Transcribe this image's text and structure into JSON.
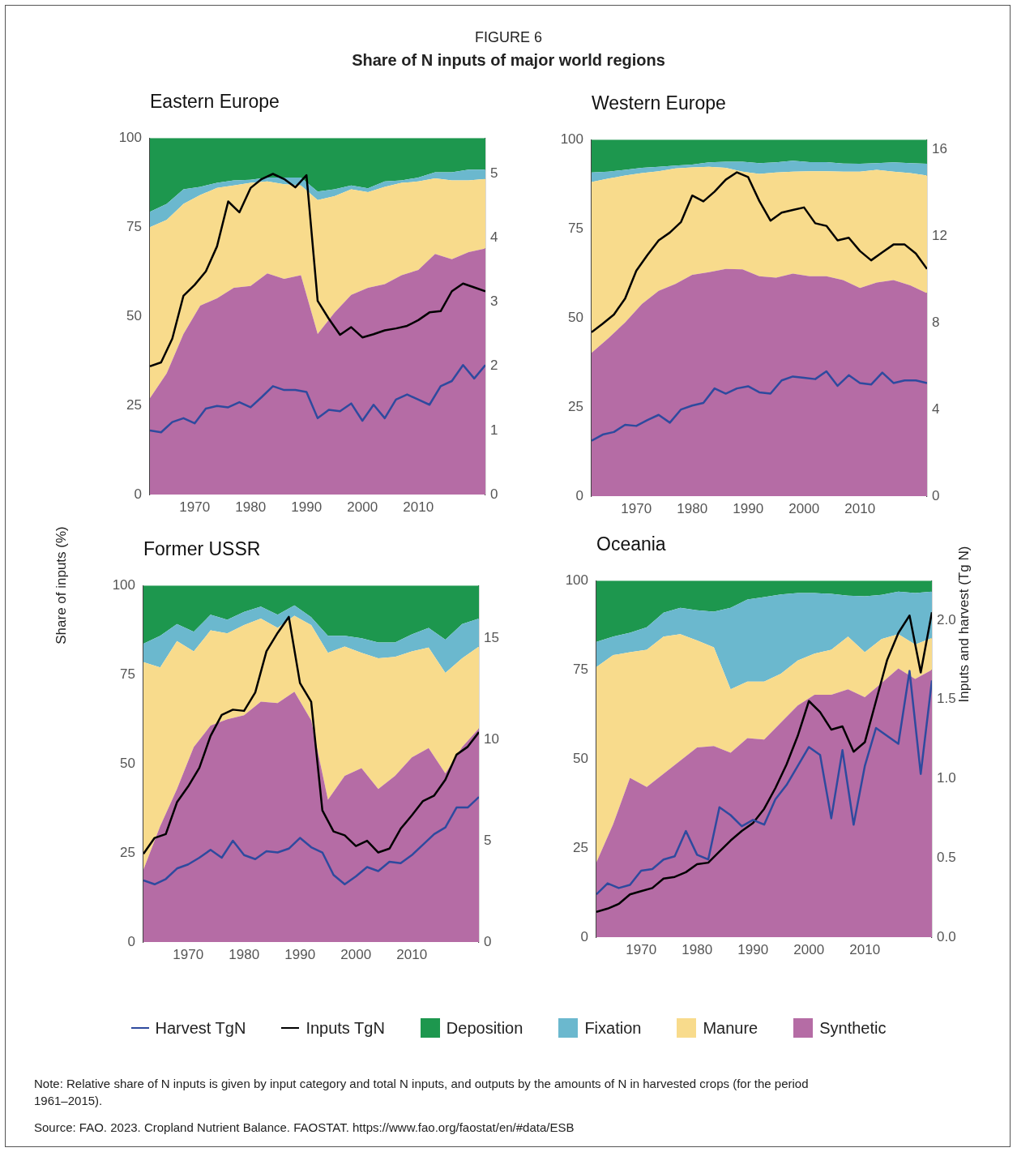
{
  "chart_data": [
    {
      "type": "other",
      "subtitle": "FIGURE 6",
      "title": "Share of N inputs of major world regions",
      "annotations": [
        "Note: Relative share of N inputs is given by input category and total N inputs, and outputs by the amounts of N in harvested crops (for the period 1961–2015).",
        "Source: FAO. 2023. Cropland Nutrient Balance. FAOSTAT. https://www.fao.org/faostat/en/#data/ESB"
      ]
    },
    {
      "type": "area",
      "title": "Eastern Europe",
      "stacked": true,
      "grid": false,
      "legend": "bottom",
      "xlim": [
        1962,
        2022
      ],
      "xticks": [
        1970,
        1980,
        1990,
        2000,
        2010
      ],
      "ylim": [
        0,
        100
      ],
      "yticks": [
        0,
        25,
        50,
        75,
        100
      ],
      "y2lim": [
        0,
        5.56
      ],
      "y2ticks": [
        0,
        1,
        2,
        3,
        4,
        5
      ],
      "series": [
        {
          "name": "Synthetic",
          "type": "area",
          "color": "#b56ca5",
          "x": [
            1962,
            1965,
            1968,
            1971,
            1974,
            1977,
            1980,
            1983,
            1986,
            1989,
            1992,
            1995,
            1998,
            2001,
            2004,
            2007,
            2010,
            2013,
            2016,
            2019,
            2022
          ],
          "values": [
            27,
            34,
            45,
            53,
            55,
            58,
            58.5,
            62,
            60.5,
            61.5,
            45,
            51,
            56,
            58,
            59,
            61.5,
            63,
            67.5,
            66,
            68,
            69
          ]
        },
        {
          "name": "Manure",
          "type": "area",
          "color": "#f8db8c",
          "x": [
            1962,
            1965,
            1968,
            1971,
            1974,
            1977,
            1980,
            1983,
            1986,
            1989,
            1992,
            1995,
            1998,
            2001,
            2004,
            2007,
            2010,
            2013,
            2016,
            2019,
            2022
          ],
          "values": [
            48,
            43,
            36.5,
            31,
            31,
            28.7,
            28.9,
            25.8,
            26.5,
            25.2,
            37.6,
            32.7,
            29.6,
            26.8,
            27.3,
            25.9,
            24.8,
            21.2,
            22.1,
            20.1,
            19.5
          ]
        },
        {
          "name": "Fixation",
          "type": "area",
          "color": "#6bb8ce",
          "x": [
            1962,
            1965,
            1968,
            1971,
            1974,
            1977,
            1980,
            1983,
            1986,
            1989,
            1992,
            1995,
            1998,
            2001,
            2004,
            2007,
            2010,
            2013,
            2016,
            2019,
            2022
          ],
          "values": [
            4.3,
            4.5,
            4.1,
            2.3,
            1.4,
            1.4,
            0.9,
            1.1,
            1.9,
            2.2,
            2.4,
            1.9,
            1.1,
            1.1,
            1.5,
            0.7,
            1.1,
            1.7,
            2.3,
            3,
            2.6
          ]
        },
        {
          "name": "Deposition",
          "type": "area",
          "color": "#1d974e",
          "x": [
            1962,
            1965,
            1968,
            1971,
            1974,
            1977,
            1980,
            1983,
            1986,
            1989,
            1992,
            1995,
            1998,
            2001,
            2004,
            2007,
            2010,
            2013,
            2016,
            2019,
            2022
          ],
          "values": [
            20.7,
            18.5,
            14.4,
            13.7,
            12.6,
            11.9,
            11.7,
            11.1,
            11.1,
            11.1,
            15,
            14.4,
            13.3,
            14.1,
            12.2,
            11.9,
            11.1,
            9.6,
            9.6,
            8.9,
            8.9
          ]
        },
        {
          "name": "Harvest TgN",
          "type": "line",
          "axis": "y2",
          "color": "#2e4a9e",
          "x": [
            1962,
            1964,
            1966,
            1968,
            1970,
            1972,
            1974,
            1976,
            1978,
            1980,
            1982,
            1984,
            1986,
            1988,
            1990,
            1992,
            1994,
            1996,
            1998,
            2000,
            2002,
            2004,
            2006,
            2008,
            2010,
            2012,
            2014,
            2016,
            2018,
            2020,
            2022
          ],
          "values": [
            1.0,
            0.97,
            1.13,
            1.19,
            1.11,
            1.34,
            1.38,
            1.36,
            1.44,
            1.36,
            1.52,
            1.69,
            1.63,
            1.63,
            1.6,
            1.19,
            1.32,
            1.3,
            1.42,
            1.15,
            1.4,
            1.19,
            1.48,
            1.56,
            1.48,
            1.4,
            1.69,
            1.77,
            2.02,
            1.81,
            2.02
          ]
        },
        {
          "name": "Inputs TgN",
          "type": "line",
          "axis": "y2",
          "color": "#000000",
          "x": [
            1962,
            1964,
            1966,
            1968,
            1970,
            1972,
            1974,
            1976,
            1978,
            1980,
            1982,
            1984,
            1986,
            1988,
            1990,
            1992,
            1994,
            1996,
            1998,
            2000,
            2002,
            2004,
            2006,
            2008,
            2010,
            2012,
            2014,
            2016,
            2018,
            2020,
            2022
          ],
          "values": [
            2.0,
            2.06,
            2.43,
            3.1,
            3.27,
            3.48,
            3.87,
            4.57,
            4.4,
            4.78,
            4.92,
            5.0,
            4.92,
            4.79,
            4.98,
            3.02,
            2.74,
            2.49,
            2.61,
            2.45,
            2.5,
            2.56,
            2.59,
            2.63,
            2.72,
            2.84,
            2.86,
            3.17,
            3.29,
            3.23,
            3.17
          ]
        }
      ]
    },
    {
      "type": "area",
      "title": "Western Europe",
      "stacked": true,
      "grid": false,
      "xlim": [
        1962,
        2022
      ],
      "xticks": [
        1970,
        1980,
        1990,
        2000,
        2010
      ],
      "ylim": [
        0,
        100
      ],
      "yticks": [
        0,
        25,
        50,
        75,
        100
      ],
      "y2lim": [
        0,
        16.45
      ],
      "y2ticks": [
        0,
        4,
        8,
        12,
        16
      ],
      "series": [
        {
          "type": "area",
          "color": "#b56ca5",
          "x": [
            1962,
            1965,
            1968,
            1971,
            1974,
            1977,
            1980,
            1983,
            1986,
            1989,
            1992,
            1995,
            1998,
            2001,
            2004,
            2007,
            2010,
            2013,
            2016,
            2019,
            2022
          ],
          "values": [
            40.2,
            44.3,
            48.7,
            53.9,
            57.6,
            59.5,
            62.1,
            62.8,
            63.7,
            63.6,
            61.7,
            61.3,
            62.4,
            61.7,
            61.7,
            60.6,
            58.4,
            59.9,
            60.6,
            59.1,
            56.9
          ]
        },
        {
          "type": "area",
          "color": "#f8db8c",
          "x": [
            1962,
            1965,
            1968,
            1971,
            1974,
            1977,
            1980,
            1983,
            1986,
            1989,
            1992,
            1995,
            1998,
            2001,
            2004,
            2007,
            2010,
            2013,
            2016,
            2019,
            2022
          ],
          "values": [
            47.9,
            44.8,
            41.2,
            36.7,
            33.5,
            32.4,
            30.1,
            29.6,
            28.4,
            27.4,
            28.7,
            29.5,
            28.6,
            29.4,
            29.4,
            30.4,
            32.6,
            31.6,
            30.4,
            31.5,
            33
          ]
        },
        {
          "type": "area",
          "color": "#6bb8ce",
          "x": [
            1962,
            1965,
            1968,
            1971,
            1974,
            1977,
            1980,
            1983,
            1986,
            1989,
            1992,
            1995,
            1998,
            2001,
            2004,
            2007,
            2010,
            2013,
            2016,
            2019,
            2022
          ],
          "values": [
            2.7,
            1.9,
            1.6,
            1.5,
            1.3,
            0.8,
            0.8,
            1.2,
            1.7,
            2.8,
            3,
            2.8,
            3.1,
            2.6,
            2.6,
            2.3,
            2.2,
            1.9,
            2.6,
            2.8,
            3.3
          ]
        },
        {
          "type": "area",
          "color": "#1d974e",
          "x": [
            1962,
            1965,
            1968,
            1971,
            1974,
            1977,
            1980,
            1983,
            1986,
            1989,
            1992,
            1995,
            1998,
            2001,
            2004,
            2007,
            2010,
            2013,
            2016,
            2019,
            2022
          ],
          "values": [
            9.2,
            9,
            8.5,
            7.9,
            7.6,
            7.3,
            7,
            6.4,
            6.2,
            6.2,
            6.6,
            6.4,
            5.9,
            6.3,
            6.3,
            6.7,
            6.8,
            6.6,
            6.4,
            6.6,
            6.8
          ]
        },
        {
          "type": "line",
          "axis": "y2",
          "color": "#2e4a9e",
          "x": [
            1962,
            1964,
            1966,
            1968,
            1970,
            1972,
            1974,
            1976,
            1978,
            1980,
            1982,
            1984,
            1986,
            1988,
            1990,
            1992,
            1994,
            1996,
            1998,
            2000,
            2002,
            2004,
            2006,
            2008,
            2010,
            2012,
            2014,
            2016,
            2018,
            2020,
            2022
          ],
          "values": [
            2.56,
            2.84,
            2.96,
            3.29,
            3.24,
            3.51,
            3.75,
            3.39,
            4.0,
            4.18,
            4.3,
            4.97,
            4.73,
            4.97,
            5.07,
            4.79,
            4.73,
            5.34,
            5.52,
            5.46,
            5.4,
            5.76,
            5.09,
            5.58,
            5.22,
            5.15,
            5.7,
            5.22,
            5.34,
            5.34,
            5.22
          ]
        },
        {
          "type": "line",
          "axis": "y2",
          "color": "#000000",
          "x": [
            1962,
            1964,
            1966,
            1968,
            1970,
            1972,
            1974,
            1976,
            1978,
            1980,
            1982,
            1984,
            1986,
            1988,
            1990,
            1992,
            1994,
            1996,
            1998,
            2000,
            2002,
            2004,
            2006,
            2008,
            2010,
            2012,
            2014,
            2016,
            2018,
            2020,
            2022
          ],
          "values": [
            7.56,
            7.96,
            8.38,
            9.12,
            10.4,
            11.13,
            11.8,
            12.16,
            12.65,
            13.87,
            13.6,
            14.05,
            14.6,
            14.94,
            14.72,
            13.62,
            12.71,
            13.08,
            13.2,
            13.32,
            12.59,
            12.47,
            11.8,
            11.92,
            11.31,
            10.88,
            11.25,
            11.61,
            11.61,
            11.19,
            10.48
          ]
        }
      ]
    },
    {
      "type": "area",
      "title": "Former USSR",
      "ylabel": "Share of inputs (%)",
      "stacked": true,
      "grid": false,
      "xlim": [
        1962,
        2022
      ],
      "xticks": [
        1970,
        1980,
        1990,
        2000,
        2010
      ],
      "ylim": [
        0,
        100
      ],
      "yticks": [
        0,
        25,
        50,
        75,
        100
      ],
      "y2lim": [
        0,
        17.6
      ],
      "y2ticks": [
        0,
        5,
        10,
        15
      ],
      "series": [
        {
          "type": "area",
          "color": "#b56ca5",
          "x": [
            1962,
            1965,
            1968,
            1971,
            1974,
            1977,
            1980,
            1983,
            1986,
            1989,
            1992,
            1995,
            1998,
            2001,
            2004,
            2007,
            2010,
            2013,
            2016,
            2019,
            2022
          ],
          "values": [
            20.3,
            32.5,
            42.9,
            54.7,
            60.7,
            62.5,
            63.6,
            67.4,
            67,
            70.2,
            62.2,
            39.9,
            46.6,
            48.8,
            42.9,
            46.6,
            51.8,
            54.4,
            47.3,
            54.7,
            59.9
          ]
        },
        {
          "type": "area",
          "color": "#f8db8c",
          "x": [
            1962,
            1965,
            1968,
            1971,
            1974,
            1977,
            1980,
            1983,
            1986,
            1989,
            1992,
            1995,
            1998,
            2001,
            2004,
            2007,
            2010,
            2013,
            2016,
            2019,
            2022
          ],
          "values": [
            58.2,
            44.5,
            41.5,
            26.8,
            26.7,
            24.1,
            25.3,
            23.3,
            21.1,
            21.3,
            26.7,
            41.2,
            36.3,
            32.3,
            36.7,
            33.4,
            29.7,
            28.2,
            28.2,
            24.9,
            23
          ]
        },
        {
          "type": "area",
          "color": "#6bb8ce",
          "x": [
            1962,
            1965,
            1968,
            1971,
            1974,
            1977,
            1980,
            1983,
            1986,
            1989,
            1992,
            1995,
            1998,
            2001,
            2004,
            2007,
            2010,
            2013,
            2016,
            2019,
            2022
          ],
          "values": [
            5.2,
            8.9,
            4.8,
            5.5,
            4.4,
            3.8,
            3.7,
            3.4,
            3.7,
            2.9,
            2.2,
            4.8,
            3,
            4.1,
            4.4,
            4,
            4.8,
            5.5,
            9.3,
            9.6,
            7.8
          ]
        },
        {
          "type": "area",
          "color": "#1d974e",
          "x": [
            1962,
            1965,
            1968,
            1971,
            1974,
            1977,
            1980,
            1983,
            1986,
            1989,
            1992,
            1995,
            1998,
            2001,
            2004,
            2007,
            2010,
            2013,
            2016,
            2019,
            2022
          ],
          "values": [
            16.3,
            14.1,
            10.8,
            13,
            8.2,
            9.6,
            7.4,
            5.9,
            8.2,
            5.6,
            8.9,
            14.1,
            14.1,
            14.8,
            16,
            16,
            13.7,
            11.9,
            15.2,
            10.8,
            9.3
          ]
        },
        {
          "type": "line",
          "axis": "y2",
          "color": "#2e4a9e",
          "x": [
            1962,
            1964,
            1966,
            1968,
            1970,
            1972,
            1974,
            1976,
            1978,
            1980,
            1982,
            1984,
            1986,
            1988,
            1990,
            1992,
            1994,
            1996,
            1998,
            2000,
            2002,
            2004,
            2006,
            2008,
            2010,
            2012,
            2014,
            2016,
            2018,
            2020,
            2022
          ],
          "values": [
            3.04,
            2.85,
            3.11,
            3.63,
            3.83,
            4.16,
            4.55,
            4.16,
            5.0,
            4.29,
            4.09,
            4.48,
            4.42,
            4.61,
            5.14,
            4.68,
            4.42,
            3.31,
            2.85,
            3.24,
            3.7,
            3.5,
            3.96,
            3.89,
            4.29,
            4.81,
            5.33,
            5.66,
            6.64,
            6.64,
            7.16
          ]
        },
        {
          "type": "line",
          "axis": "y2",
          "color": "#000000",
          "x": [
            1962,
            1964,
            1966,
            1968,
            1970,
            1972,
            1974,
            1976,
            1978,
            1980,
            1982,
            1984,
            1986,
            1988,
            1990,
            1992,
            1994,
            1996,
            1998,
            2000,
            2002,
            2004,
            2006,
            2008,
            2010,
            2012,
            2014,
            2016,
            2018,
            2020,
            2022
          ],
          "values": [
            4.35,
            5.14,
            5.33,
            6.9,
            7.68,
            8.6,
            10.17,
            11.21,
            11.47,
            11.41,
            12.32,
            14.35,
            15.26,
            16.05,
            12.78,
            11.86,
            6.5,
            5.46,
            5.27,
            4.74,
            5.0,
            4.42,
            4.61,
            5.59,
            6.25,
            6.96,
            7.23,
            8.01,
            9.25,
            9.64,
            10.36
          ]
        }
      ]
    },
    {
      "type": "area",
      "title": "Oceania",
      "y2label": "Inputs and harvest (Tg N)",
      "stacked": true,
      "grid": false,
      "xlim": [
        1962,
        2022
      ],
      "xticks": [
        1970,
        1980,
        1990,
        2000,
        2010
      ],
      "ylim": [
        0,
        100
      ],
      "yticks": [
        0,
        25,
        50,
        75,
        100
      ],
      "y2lim": [
        0,
        2.25
      ],
      "y2ticks": [
        {
          "value": 0,
          "label": "0.0"
        },
        {
          "value": 0.5,
          "label": "0.5"
        },
        {
          "value": 1,
          "label": "1.0"
        },
        {
          "value": 1.5,
          "label": "1.5"
        },
        {
          "value": 2,
          "label": "2.0"
        }
      ],
      "series": [
        {
          "type": "area",
          "color": "#b56ca5",
          "x": [
            1962,
            1965,
            1968,
            1971,
            1974,
            1977,
            1980,
            1983,
            1986,
            1989,
            1992,
            1995,
            1998,
            2001,
            2004,
            2007,
            2010,
            2013,
            2016,
            2019,
            2022
          ],
          "values": [
            21,
            31.7,
            44.7,
            42.1,
            45.8,
            49.5,
            53.2,
            53.6,
            51.7,
            55.8,
            55.4,
            60.2,
            65,
            68,
            68,
            69.5,
            67.3,
            71.3,
            75.4,
            72.4,
            75
          ]
        },
        {
          "type": "area",
          "color": "#f8db8c",
          "x": [
            1962,
            1965,
            1968,
            1971,
            1974,
            1977,
            1980,
            1983,
            1986,
            1989,
            1992,
            1995,
            1998,
            2001,
            2004,
            2007,
            2010,
            2013,
            2016,
            2019,
            2022
          ],
          "values": [
            54.8,
            47.4,
            35.2,
            38.5,
            38.5,
            35.5,
            30,
            27.7,
            17.8,
            15.9,
            16.3,
            13.7,
            12.6,
            11.5,
            12.6,
            14.8,
            12.6,
            12.3,
            9.6,
            9.7,
            8.9
          ]
        },
        {
          "type": "area",
          "color": "#6bb8ce",
          "x": [
            1962,
            1965,
            1968,
            1971,
            1974,
            1977,
            1980,
            1983,
            1986,
            1989,
            1992,
            1995,
            1998,
            2001,
            2004,
            2007,
            2010,
            2013,
            2016,
            2019,
            2022
          ],
          "values": [
            7,
            5.2,
            5.5,
            6.3,
            6.7,
            7.4,
            8.5,
            10,
            22.9,
            23,
            23.7,
            22.2,
            18.9,
            17,
            15.7,
            11.5,
            15.7,
            12.4,
            11.9,
            14.4,
            13
          ]
        },
        {
          "type": "area",
          "color": "#1d974e",
          "x": [
            1962,
            1965,
            1968,
            1971,
            1974,
            1977,
            1980,
            1983,
            1986,
            1989,
            1992,
            1995,
            1998,
            2001,
            2004,
            2007,
            2010,
            2013,
            2016,
            2019,
            2022
          ],
          "values": [
            17.2,
            15.7,
            14.6,
            13.1,
            9,
            7.6,
            8.3,
            8.7,
            7.6,
            5.3,
            4.6,
            3.9,
            3.5,
            3.5,
            3.7,
            4.2,
            4.4,
            4,
            3.1,
            3.5,
            3.1
          ]
        },
        {
          "type": "line",
          "axis": "y2",
          "color": "#2e4a9e",
          "x": [
            1962,
            1964,
            1966,
            1968,
            1970,
            1972,
            1974,
            1976,
            1978,
            1980,
            1982,
            1984,
            1986,
            1988,
            1990,
            1992,
            1994,
            1996,
            1998,
            2000,
            2002,
            2004,
            2006,
            2008,
            2010,
            2012,
            2014,
            2016,
            2018,
            2020,
            2022
          ],
          "values": [
            0.27,
            0.34,
            0.31,
            0.33,
            0.42,
            0.43,
            0.49,
            0.51,
            0.67,
            0.52,
            0.49,
            0.82,
            0.77,
            0.7,
            0.74,
            0.71,
            0.87,
            0.96,
            1.08,
            1.2,
            1.15,
            0.75,
            1.18,
            0.71,
            1.08,
            1.32,
            1.27,
            1.22,
            1.68,
            1.03,
            1.62
          ]
        },
        {
          "type": "line",
          "axis": "y2",
          "color": "#000000",
          "x": [
            1962,
            1964,
            1966,
            1968,
            1970,
            1972,
            1974,
            1976,
            1978,
            1980,
            1982,
            1984,
            1986,
            1988,
            1990,
            1992,
            1994,
            1996,
            1998,
            2000,
            2002,
            2004,
            2006,
            2008,
            2010,
            2012,
            2014,
            2016,
            2018,
            2020,
            2022
          ],
          "values": [
            0.16,
            0.18,
            0.21,
            0.27,
            0.29,
            0.31,
            0.37,
            0.38,
            0.41,
            0.46,
            0.47,
            0.54,
            0.61,
            0.67,
            0.72,
            0.81,
            0.94,
            1.09,
            1.27,
            1.49,
            1.42,
            1.31,
            1.33,
            1.17,
            1.23,
            1.49,
            1.75,
            1.92,
            2.03,
            1.67,
            2.05
          ]
        }
      ]
    }
  ]
}
